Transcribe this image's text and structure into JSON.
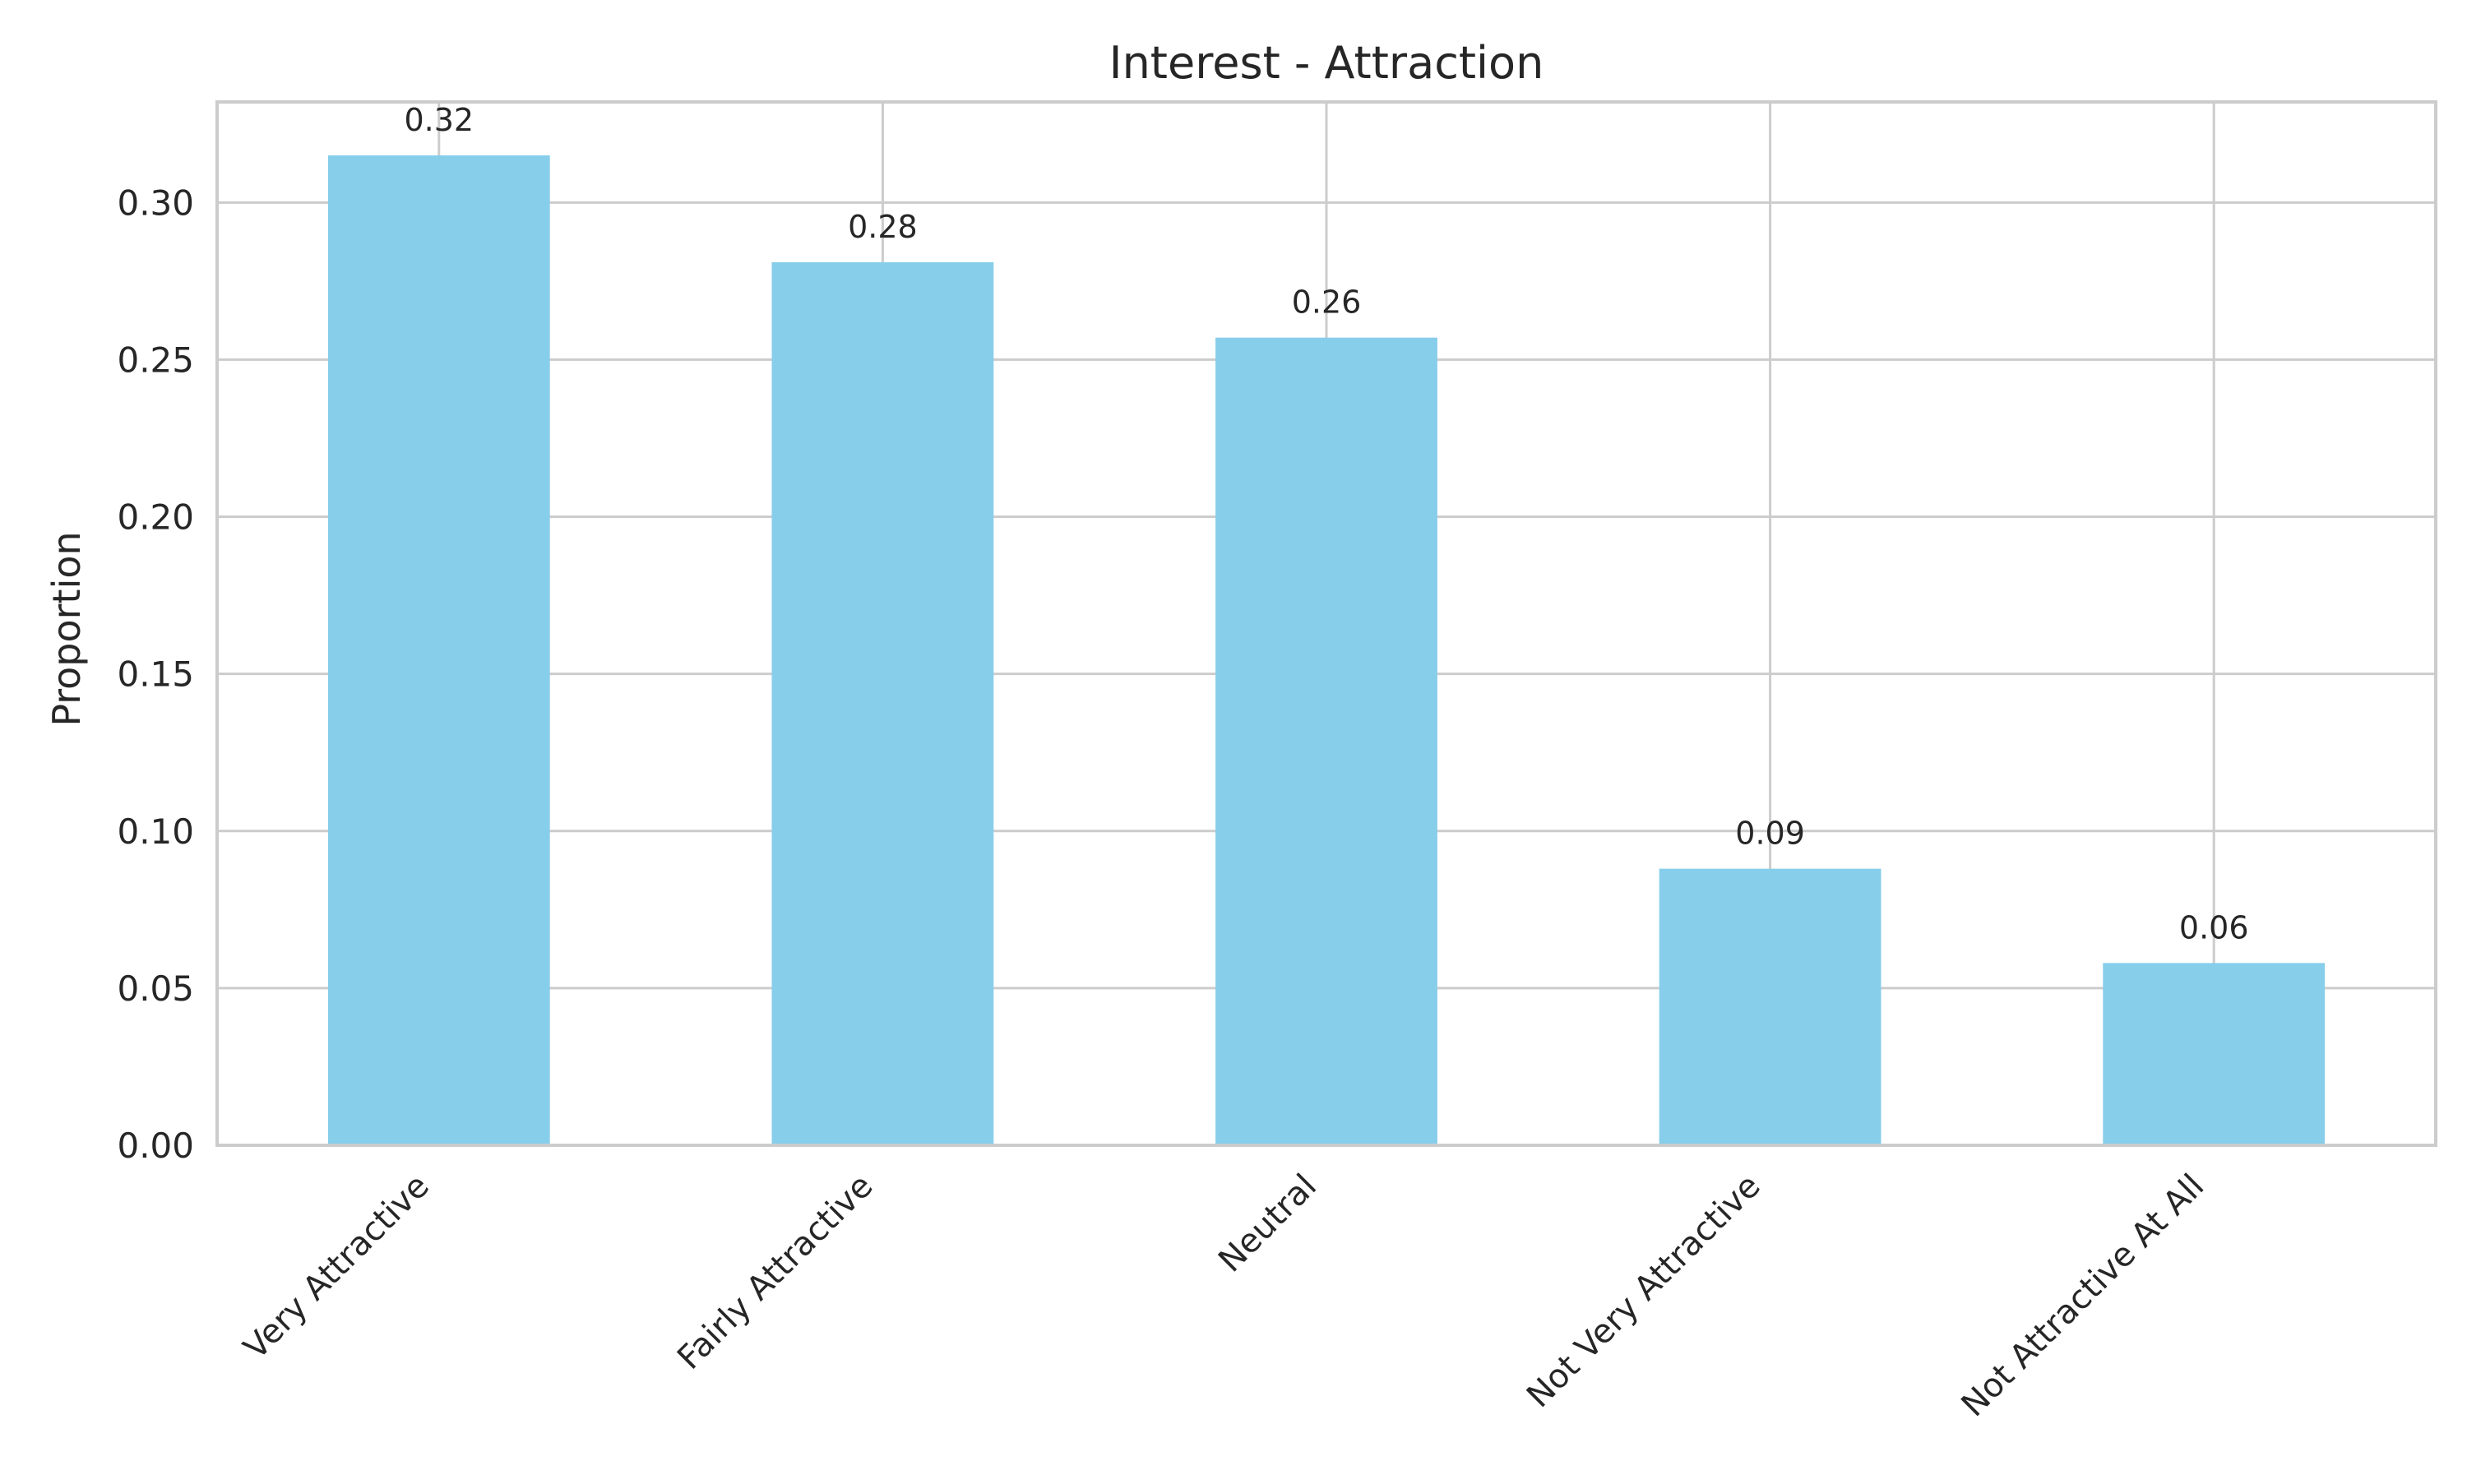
{
  "chart_data": {
    "type": "bar",
    "title": "Interest - Attraction",
    "xlabel": "",
    "ylabel": "Proportion",
    "categories": [
      "Very Attractive",
      "Fairly Attractive",
      "Neutral",
      "Not Very Attractive",
      "Not Attractive At All"
    ],
    "values": [
      0.315,
      0.281,
      0.257,
      0.088,
      0.058
    ],
    "value_labels": [
      "0.32",
      "0.28",
      "0.26",
      "0.09",
      "0.06"
    ],
    "ylim": [
      0,
      0.332
    ],
    "yticks": [
      0.0,
      0.05,
      0.1,
      0.15,
      0.2,
      0.25,
      0.3
    ],
    "ytick_labels": [
      "0.00",
      "0.05",
      "0.10",
      "0.15",
      "0.20",
      "0.25",
      "0.30"
    ],
    "grid": true,
    "colors": {
      "bar": "#87CEEB",
      "grid": "#cccccc",
      "frame": "#cccccc",
      "text": "#262626"
    }
  }
}
